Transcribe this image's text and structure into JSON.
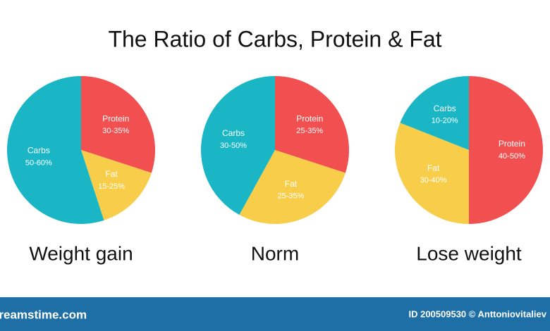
{
  "title": "The Ratio of Carbs, Protein & Fat",
  "chart_data": [
    {
      "type": "pie",
      "title": "Weight gain",
      "categories": [
        "Protein",
        "Fat",
        "Carbs"
      ],
      "values": [
        30,
        15,
        55
      ],
      "value_labels": [
        "30-35%",
        "15-25%",
        "50-60%"
      ],
      "colors": [
        "#f25050",
        "#f8cd4a",
        "#1ab6c6"
      ]
    },
    {
      "type": "pie",
      "title": "Norm",
      "categories": [
        "Protein",
        "Fat",
        "Carbs"
      ],
      "values": [
        30,
        28,
        42
      ],
      "value_labels": [
        "25-35%",
        "25-35%",
        "30-50%"
      ],
      "colors": [
        "#f25050",
        "#f8cd4a",
        "#1ab6c6"
      ]
    },
    {
      "type": "pie",
      "title": "Lose weight",
      "categories": [
        "Protein",
        "Fat",
        "Carbs"
      ],
      "values": [
        50,
        31,
        19
      ],
      "value_labels": [
        "40-50%",
        "30-40%",
        "10-20%"
      ],
      "colors": [
        "#f25050",
        "#f8cd4a",
        "#1ab6c6"
      ]
    }
  ],
  "footer": {
    "site": "dreamstime.com",
    "credit": "ID 200509530 © Anttoniovitaliev"
  }
}
